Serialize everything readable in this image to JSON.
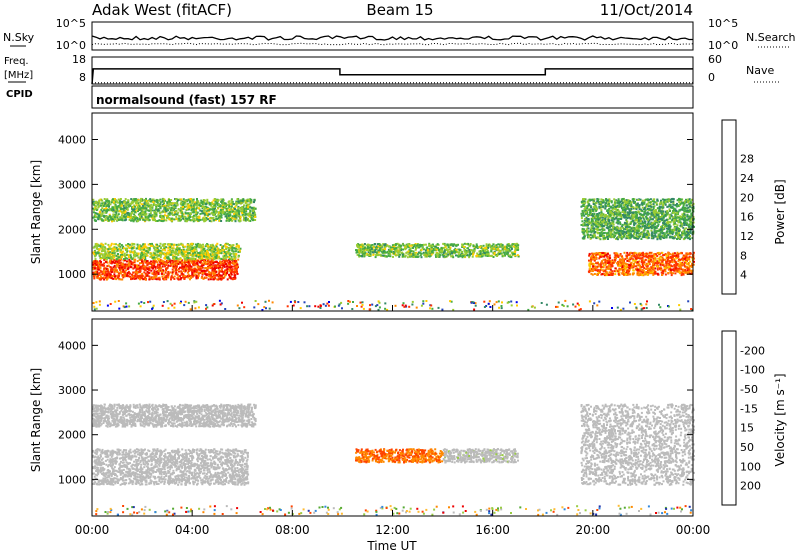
{
  "header": {
    "site": "Adak West (fitACF)",
    "beam": "Beam 15",
    "date": "11/Oct/2014"
  },
  "noise_panel": {
    "left_label": "N.Sky",
    "right_label": "N.Search",
    "left_ticks": [
      "10^5",
      "10^0"
    ],
    "right_ticks": [
      "10^5",
      "10^0"
    ]
  },
  "freq_panel": {
    "left_label_1": "Freq.",
    "left_label_2": "[MHz]",
    "left_label_3": "CPID",
    "right_label": "Nave",
    "left_ticks": [
      "18",
      "8"
    ],
    "right_ticks": [
      "60",
      "0"
    ],
    "cpid_text": "normalsound (fast) 157 RF",
    "freq_step_hours": [
      {
        "start": 0.05,
        "end": 9.9,
        "freq_mhz": 13.6
      },
      {
        "start": 9.9,
        "end": 18.1,
        "freq_mhz": 11.4
      },
      {
        "start": 18.1,
        "end": 24.0,
        "freq_mhz": 13.6
      }
    ],
    "nave_level": 3
  },
  "chart_data": [
    {
      "type": "heatmap",
      "panel": "power",
      "ylabel": "Slant Range [km]",
      "yticks": [
        "1000",
        "2000",
        "3000",
        "4000"
      ],
      "ylim": [
        180,
        4590
      ],
      "xlim": [
        0,
        24
      ],
      "colorbar_label": "Power [dB]",
      "colorbar_ticks": [
        "4",
        "8",
        "12",
        "16",
        "20",
        "24",
        "28"
      ],
      "colorbar_colors": [
        "#0000ee",
        "#2244bb",
        "#338866",
        "#44aa44",
        "#99cc33",
        "#ffcc00",
        "#ff8800",
        "#ff3300",
        "#ee0000"
      ],
      "scatter_regions": [
        {
          "t0": 0.0,
          "t1": 5.8,
          "r0": 900,
          "r1": 1350,
          "value": 28
        },
        {
          "t0": 0.0,
          "t1": 5.9,
          "r0": 1350,
          "r1": 1700,
          "value": 16
        },
        {
          "t0": 0.0,
          "t1": 6.5,
          "r0": 2200,
          "r1": 2700,
          "value": 14
        },
        {
          "t0": 10.5,
          "t1": 17.0,
          "r0": 1400,
          "r1": 1700,
          "value": 14
        },
        {
          "t0": 19.8,
          "t1": 24.0,
          "r0": 1000,
          "r1": 1500,
          "value": 26
        },
        {
          "t0": 19.5,
          "t1": 24.0,
          "r0": 1800,
          "r1": 2700,
          "value": 12
        }
      ]
    },
    {
      "type": "heatmap",
      "panel": "velocity",
      "ylabel": "Slant Range [km]",
      "yticks": [
        "1000",
        "2000",
        "3000",
        "4000"
      ],
      "ylim": [
        180,
        4590
      ],
      "xlim": [
        0,
        24
      ],
      "xlabel": "Time UT",
      "xticks": [
        "00:00",
        "04:00",
        "08:00",
        "12:00",
        "16:00",
        "20:00",
        "00:00"
      ],
      "colorbar_label": "Velocity [m s⁻¹]",
      "colorbar_ticks": [
        "200",
        "100",
        "50",
        "15",
        "-15",
        "-50",
        "-100",
        "-200"
      ],
      "colorbar_colors": [
        "#2233aa",
        "#3388dd",
        "#55aa33",
        "#99cc44",
        "#bbbbbb",
        "#ffbb33",
        "#ff8800",
        "#ff4400",
        "#ee0000"
      ],
      "scatter_regions": [
        {
          "t0": 0.0,
          "t1": 6.2,
          "r0": 900,
          "r1": 1700,
          "value": 0
        },
        {
          "t0": 0.0,
          "t1": 6.5,
          "r0": 2200,
          "r1": 2700,
          "value": 0
        },
        {
          "t0": 10.5,
          "t1": 14.0,
          "r0": 1400,
          "r1": 1700,
          "value": -150
        },
        {
          "t0": 14.0,
          "t1": 17.0,
          "r0": 1400,
          "r1": 1700,
          "value": 5
        },
        {
          "t0": 19.5,
          "t1": 24.0,
          "r0": 900,
          "r1": 2700,
          "value": 0
        }
      ]
    }
  ]
}
